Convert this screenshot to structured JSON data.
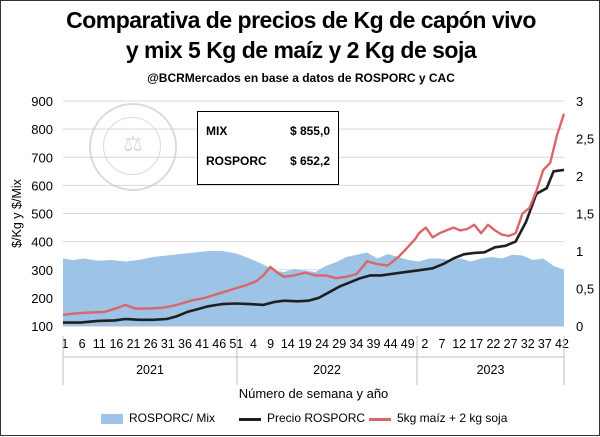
{
  "title_line1": "Comparativa de precios de Kg de capón vivo",
  "title_line2": "y mix 5 Kg de maíz y 2 Kg de soja",
  "subtitle": "@BCRMercados  en base a datos de ROSPORC y CAC",
  "infobox": {
    "mix_label": "MIX",
    "mix_value": "$ 855,0",
    "rosporc_label": "ROSPORC",
    "rosporc_value": "$ 652,2"
  },
  "legend": {
    "ratio": "ROSPORC/ Mix",
    "rosporc": "Precio ROSPORC",
    "mix": "5kg maíz + 2 kg soja"
  },
  "colors": {
    "ratio": "#9dc3e6",
    "rosporc": "#1f1f1f",
    "mix": "#d9676a"
  },
  "chart_data": {
    "type": "line",
    "title": "Comparativa de precios de Kg de capón vivo y mix 5 Kg de maíz y 2 Kg de soja",
    "xlabel": "Número de semana y año",
    "ylabel": "$/Kg y $/Mix",
    "ylim": [
      100,
      900
    ],
    "y2lim": [
      0,
      3
    ],
    "y_ticks": [
      100,
      200,
      300,
      400,
      500,
      600,
      700,
      800,
      900
    ],
    "y2_ticks": [
      "0",
      "0,5",
      "1",
      "1,5",
      "2",
      "2,5",
      "3"
    ],
    "x_tick_labels": [
      "1",
      "6",
      "11",
      "16",
      "21",
      "26",
      "31",
      "36",
      "41",
      "46",
      "51",
      "4",
      "9",
      "14",
      "19",
      "24",
      "29",
      "34",
      "39",
      "44",
      "49",
      "2",
      "7",
      "12",
      "17",
      "22",
      "27",
      "32",
      "37",
      "42"
    ],
    "years": [
      "2021",
      "2022",
      "2023"
    ],
    "legend_position": "bottom",
    "grid": true,
    "series": [
      {
        "name": "ROSPORC/ Mix",
        "axis": "right",
        "style": "area",
        "points": [
          [
            0,
            0.9
          ],
          [
            3,
            0.88
          ],
          [
            6,
            0.9
          ],
          [
            10,
            0.87
          ],
          [
            14,
            0.88
          ],
          [
            18,
            0.86
          ],
          [
            22,
            0.88
          ],
          [
            26,
            0.92
          ],
          [
            30,
            0.94
          ],
          [
            34,
            0.96
          ],
          [
            38,
            0.98
          ],
          [
            42,
            1.0
          ],
          [
            46,
            1.0
          ],
          [
            50,
            0.97
          ],
          [
            54,
            0.9
          ],
          [
            58,
            0.82
          ],
          [
            61,
            0.74
          ],
          [
            64,
            0.72
          ],
          [
            67,
            0.76
          ],
          [
            70,
            0.74
          ],
          [
            73,
            0.72
          ],
          [
            76,
            0.8
          ],
          [
            79,
            0.85
          ],
          [
            82,
            0.92
          ],
          [
            85,
            0.95
          ],
          [
            88,
            0.98
          ],
          [
            91,
            0.9
          ],
          [
            94,
            0.96
          ],
          [
            97,
            0.92
          ],
          [
            100,
            0.88
          ],
          [
            103,
            0.86
          ],
          [
            106,
            0.9
          ],
          [
            109,
            0.9
          ],
          [
            112,
            0.88
          ],
          [
            115,
            0.9
          ],
          [
            118,
            0.86
          ],
          [
            121,
            0.9
          ],
          [
            124,
            0.92
          ],
          [
            127,
            0.9
          ],
          [
            130,
            0.95
          ],
          [
            133,
            0.94
          ],
          [
            136,
            0.88
          ],
          [
            139,
            0.9
          ],
          [
            142,
            0.8
          ],
          [
            145,
            0.75
          ]
        ]
      },
      {
        "name": "Precio ROSPORC",
        "axis": "left",
        "style": "line",
        "points": [
          [
            0,
            112
          ],
          [
            5,
            112
          ],
          [
            10,
            118
          ],
          [
            15,
            120
          ],
          [
            18,
            125
          ],
          [
            22,
            122
          ],
          [
            26,
            122
          ],
          [
            30,
            125
          ],
          [
            33,
            135
          ],
          [
            36,
            150
          ],
          [
            39,
            160
          ],
          [
            42,
            170
          ],
          [
            46,
            178
          ],
          [
            50,
            180
          ],
          [
            54,
            178
          ],
          [
            58,
            175
          ],
          [
            61,
            185
          ],
          [
            64,
            190
          ],
          [
            68,
            188
          ],
          [
            71,
            190
          ],
          [
            74,
            200
          ],
          [
            77,
            220
          ],
          [
            80,
            240
          ],
          [
            83,
            255
          ],
          [
            86,
            270
          ],
          [
            89,
            280
          ],
          [
            92,
            280
          ],
          [
            95,
            285
          ],
          [
            98,
            290
          ],
          [
            101,
            295
          ],
          [
            104,
            300
          ],
          [
            107,
            305
          ],
          [
            110,
            320
          ],
          [
            113,
            340
          ],
          [
            116,
            355
          ],
          [
            119,
            360
          ],
          [
            122,
            362
          ],
          [
            125,
            380
          ],
          [
            128,
            385
          ],
          [
            131,
            400
          ],
          [
            134,
            470
          ],
          [
            137,
            570
          ],
          [
            140,
            590
          ],
          [
            142,
            650
          ],
          [
            145,
            655
          ]
        ]
      },
      {
        "name": "5kg maíz + 2 kg soja",
        "axis": "left",
        "style": "line",
        "points": [
          [
            0,
            140
          ],
          [
            4,
            145
          ],
          [
            8,
            148
          ],
          [
            12,
            150
          ],
          [
            16,
            165
          ],
          [
            18,
            175
          ],
          [
            21,
            162
          ],
          [
            25,
            162
          ],
          [
            29,
            165
          ],
          [
            33,
            175
          ],
          [
            37,
            190
          ],
          [
            41,
            200
          ],
          [
            45,
            215
          ],
          [
            49,
            230
          ],
          [
            53,
            245
          ],
          [
            56,
            260
          ],
          [
            58,
            280
          ],
          [
            60,
            310
          ],
          [
            62,
            290
          ],
          [
            64,
            275
          ],
          [
            67,
            280
          ],
          [
            70,
            290
          ],
          [
            73,
            280
          ],
          [
            76,
            280
          ],
          [
            79,
            270
          ],
          [
            82,
            275
          ],
          [
            85,
            285
          ],
          [
            86,
            300
          ],
          [
            88,
            330
          ],
          [
            91,
            320
          ],
          [
            94,
            315
          ],
          [
            97,
            345
          ],
          [
            99,
            370
          ],
          [
            102,
            410
          ],
          [
            103,
            430
          ],
          [
            105,
            450
          ],
          [
            107,
            415
          ],
          [
            109,
            430
          ],
          [
            111,
            440
          ],
          [
            113,
            450
          ],
          [
            115,
            440
          ],
          [
            117,
            445
          ],
          [
            119,
            460
          ],
          [
            121,
            430
          ],
          [
            123,
            460
          ],
          [
            125,
            440
          ],
          [
            127,
            425
          ],
          [
            129,
            420
          ],
          [
            131,
            430
          ],
          [
            133,
            500
          ],
          [
            135,
            520
          ],
          [
            137,
            580
          ],
          [
            139,
            655
          ],
          [
            141,
            680
          ],
          [
            143,
            780
          ],
          [
            145,
            855
          ]
        ]
      }
    ]
  }
}
